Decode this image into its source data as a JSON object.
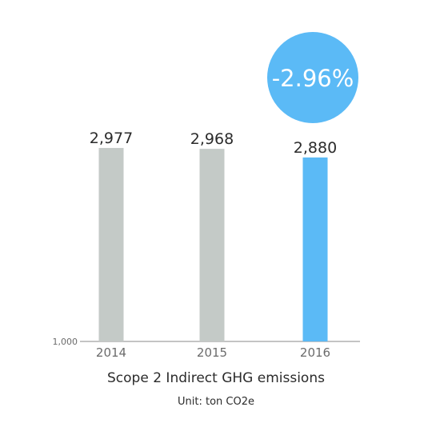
{
  "chart_data": {
    "type": "bar",
    "title": "Scope 2 Indirect GHG emissions",
    "subtitle": "Unit: ton CO2e",
    "categories": [
      "2014",
      "2015",
      "2016"
    ],
    "values": [
      2977,
      2968,
      2880
    ],
    "value_labels": [
      "2,977",
      "2,968",
      "2,880"
    ],
    "ylim": [
      1000,
      3100
    ],
    "y_tick_labels": [
      "1,000"
    ],
    "grid": false,
    "highlight_index": 2,
    "colors": {
      "bar": "#c4cac7",
      "highlight": "#5bbaf6",
      "badge": "#5bbaf6",
      "axis": "#8a8a8a"
    },
    "badge": {
      "text": "-2.96%"
    }
  }
}
